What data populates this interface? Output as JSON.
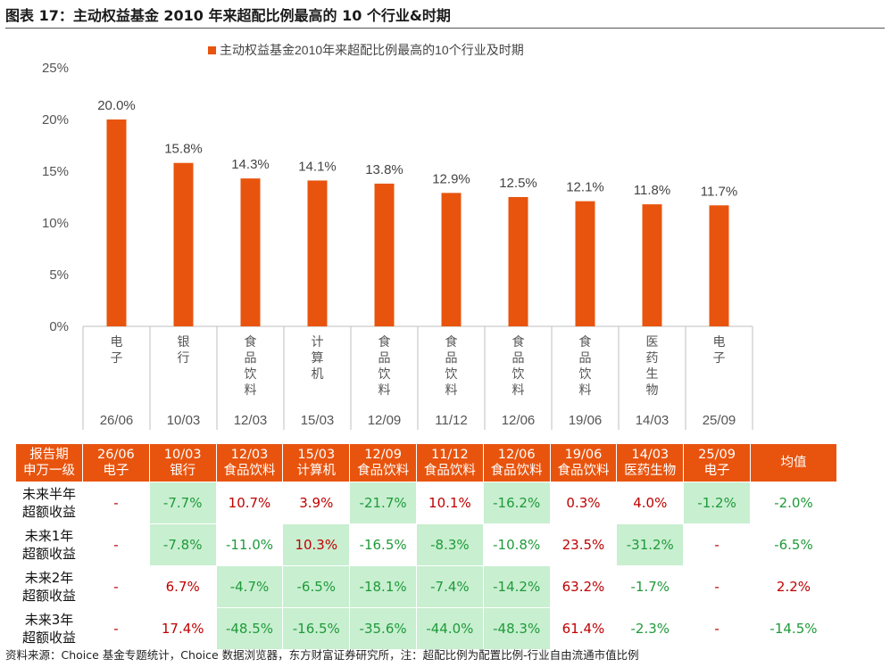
{
  "figure_title": "图表 17：主动权益基金 2010 年来超配比例最高的 10 个行业&时期",
  "chart_data": {
    "type": "bar",
    "title": "",
    "legend": {
      "label": "主动权益基金2010年来超配比例最高的10个行业及时期",
      "position": "top"
    },
    "bar_color": "#e8540e",
    "categories": [
      {
        "industry": "电子",
        "period": "26/06"
      },
      {
        "industry": "银行",
        "period": "10/03"
      },
      {
        "industry": "食品饮料",
        "period": "12/03"
      },
      {
        "industry": "计算机",
        "period": "15/03"
      },
      {
        "industry": "食品饮料",
        "period": "12/09"
      },
      {
        "industry": "食品饮料",
        "period": "11/12"
      },
      {
        "industry": "食品饮料",
        "period": "12/06"
      },
      {
        "industry": "食品饮料",
        "period": "19/06"
      },
      {
        "industry": "医药生物",
        "period": "14/03"
      },
      {
        "industry": "电子",
        "period": "25/09"
      }
    ],
    "values": [
      20.0,
      15.8,
      14.3,
      14.1,
      13.8,
      12.9,
      12.5,
      12.1,
      11.8,
      11.7
    ],
    "data_labels": [
      "20.0%",
      "15.8%",
      "14.3%",
      "14.1%",
      "13.8%",
      "12.9%",
      "12.5%",
      "12.1%",
      "11.8%",
      "11.7%"
    ],
    "ylim": [
      0,
      25
    ],
    "yticks": [
      0,
      5,
      10,
      15,
      20,
      25
    ],
    "ytick_labels": [
      "0%",
      "5%",
      "10%",
      "15%",
      "20%",
      "25%"
    ],
    "grid": false
  },
  "table": {
    "header_row1_label": "报告期",
    "header_row2_label": "申万一级",
    "columns": [
      {
        "period": "26/06",
        "industry": "电子"
      },
      {
        "period": "10/03",
        "industry": "银行"
      },
      {
        "period": "12/03",
        "industry": "食品饮料"
      },
      {
        "period": "15/03",
        "industry": "计算机"
      },
      {
        "period": "12/09",
        "industry": "食品饮料"
      },
      {
        "period": "11/12",
        "industry": "食品饮料"
      },
      {
        "period": "12/06",
        "industry": "食品饮料"
      },
      {
        "period": "19/06",
        "industry": "食品饮料"
      },
      {
        "period": "14/03",
        "industry": "医药生物"
      },
      {
        "period": "25/09",
        "industry": "电子"
      }
    ],
    "avg_label": "均值",
    "rows": [
      {
        "label1": "未来半年",
        "label2": "超额收益",
        "values": [
          "-",
          "-7.7%",
          "10.7%",
          "3.9%",
          "-21.7%",
          "10.1%",
          "-16.2%",
          "0.3%",
          "4.0%",
          "-1.2%"
        ],
        "avg": "-2.0%"
      },
      {
        "label1": "未来1年",
        "label2": "超额收益",
        "values": [
          "-",
          "-7.8%",
          "-11.0%",
          "10.3%",
          "-16.5%",
          "-8.3%",
          "-10.8%",
          "23.5%",
          "-31.2%",
          "-"
        ],
        "avg": "-6.5%"
      },
      {
        "label1": "未来2年",
        "label2": "超额收益",
        "values": [
          "-",
          "6.7%",
          "-4.7%",
          "-6.5%",
          "-18.1%",
          "-7.4%",
          "-14.2%",
          "63.2%",
          "-1.7%",
          "-"
        ],
        "avg": "2.2%"
      },
      {
        "label1": "未来3年",
        "label2": "超额收益",
        "values": [
          "-",
          "17.4%",
          "-48.5%",
          "-16.5%",
          "-35.6%",
          "-44.0%",
          "-48.3%",
          "61.4%",
          "-2.3%",
          "-"
        ],
        "avg": "-14.5%"
      }
    ],
    "colors": {
      "header_bg": "#e8540e",
      "positive": "#c00000",
      "negative": "#1f9a3a",
      "highlight": "#c8efd0"
    }
  },
  "source_note": "资料来源：Choice 基金专题统计，Choice 数据浏览器，东方财富证券研究所，注：超配比例为配置比例-行业自由流通市值比例"
}
